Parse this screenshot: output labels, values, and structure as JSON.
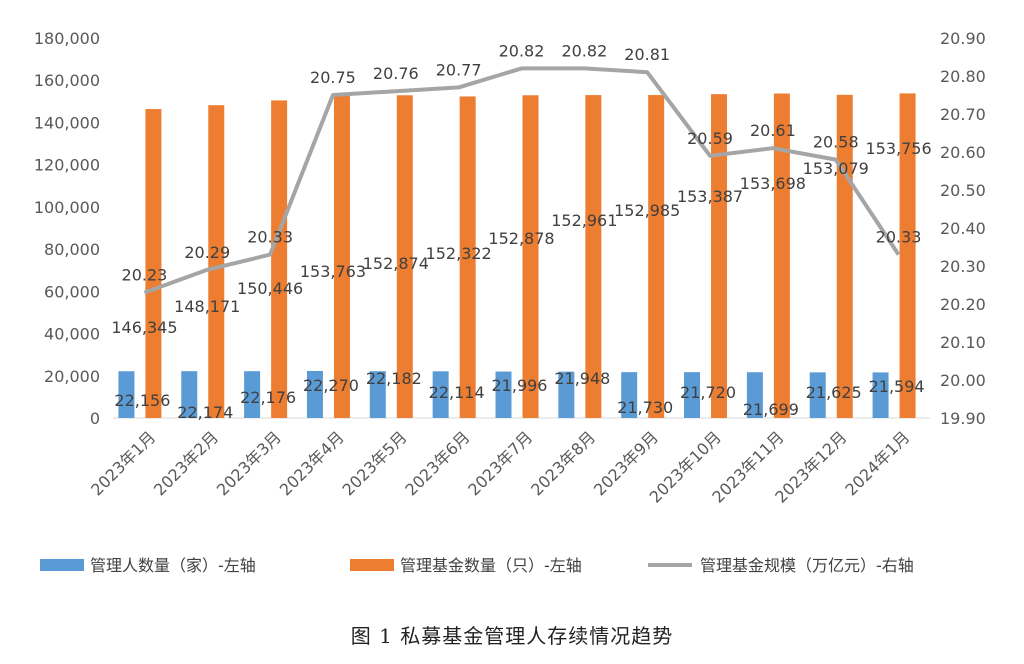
{
  "caption": "图 1  私募基金管理人存续情况趋势",
  "chart_data": {
    "type": "bar+line",
    "categories": [
      "2023年1月",
      "2023年2月",
      "2023年3月",
      "2023年4月",
      "2023年5月",
      "2023年6月",
      "2023年7月",
      "2023年8月",
      "2023年9月",
      "2023年10月",
      "2023年11月",
      "2023年12月",
      "2024年1月"
    ],
    "series": [
      {
        "name": "管理人数量（家）-左轴",
        "type": "bar",
        "axis": "left",
        "color": "#5B9BD5",
        "values": [
          22156,
          22174,
          22176,
          22270,
          22182,
          22114,
          21996,
          21948,
          21730,
          21720,
          21699,
          21625,
          21594
        ],
        "labels": [
          "22,156",
          "22,174",
          "22,176",
          "22,270",
          "22,182",
          "22,114",
          "21,996",
          "21,948",
          "21,730",
          "21,720",
          "21,699",
          "21,625",
          "21,594"
        ]
      },
      {
        "name": "管理基金数量（只）-左轴",
        "type": "bar",
        "axis": "left",
        "color": "#ED7D31",
        "values": [
          146345,
          148171,
          150446,
          153763,
          152874,
          152322,
          152878,
          152961,
          152985,
          153387,
          153698,
          153079,
          153756
        ],
        "labels": [
          "146,345",
          "148,171",
          "150,446",
          "153,763",
          "152,874",
          "152,322",
          "152,878",
          "152,961",
          "152,985",
          "153,387",
          "153,698",
          "153,079",
          "153,756"
        ]
      },
      {
        "name": "管理基金规模（万亿元）-右轴",
        "type": "line",
        "axis": "right",
        "color": "#A5A5A5",
        "values": [
          20.23,
          20.29,
          20.33,
          20.75,
          20.76,
          20.77,
          20.82,
          20.82,
          20.81,
          20.59,
          20.61,
          20.58,
          20.33
        ],
        "labels": [
          "20.23",
          "20.29",
          "20.33",
          "20.75",
          "20.76",
          "20.77",
          "20.82",
          "20.82",
          "20.81",
          "20.59",
          "20.61",
          "20.58",
          "20.33"
        ]
      }
    ],
    "left_axis": {
      "range": [
        0,
        180000
      ],
      "ticks": [
        "0",
        "20,000",
        "40,000",
        "60,000",
        "80,000",
        "100,000",
        "120,000",
        "140,000",
        "160,000",
        "180,000"
      ]
    },
    "right_axis": {
      "range": [
        19.9,
        20.9
      ],
      "ticks": [
        "19.90",
        "20.00",
        "20.10",
        "20.20",
        "20.30",
        "20.40",
        "20.50",
        "20.60",
        "20.70",
        "20.80",
        "20.90"
      ]
    },
    "grid": false,
    "legend_position": "bottom"
  }
}
